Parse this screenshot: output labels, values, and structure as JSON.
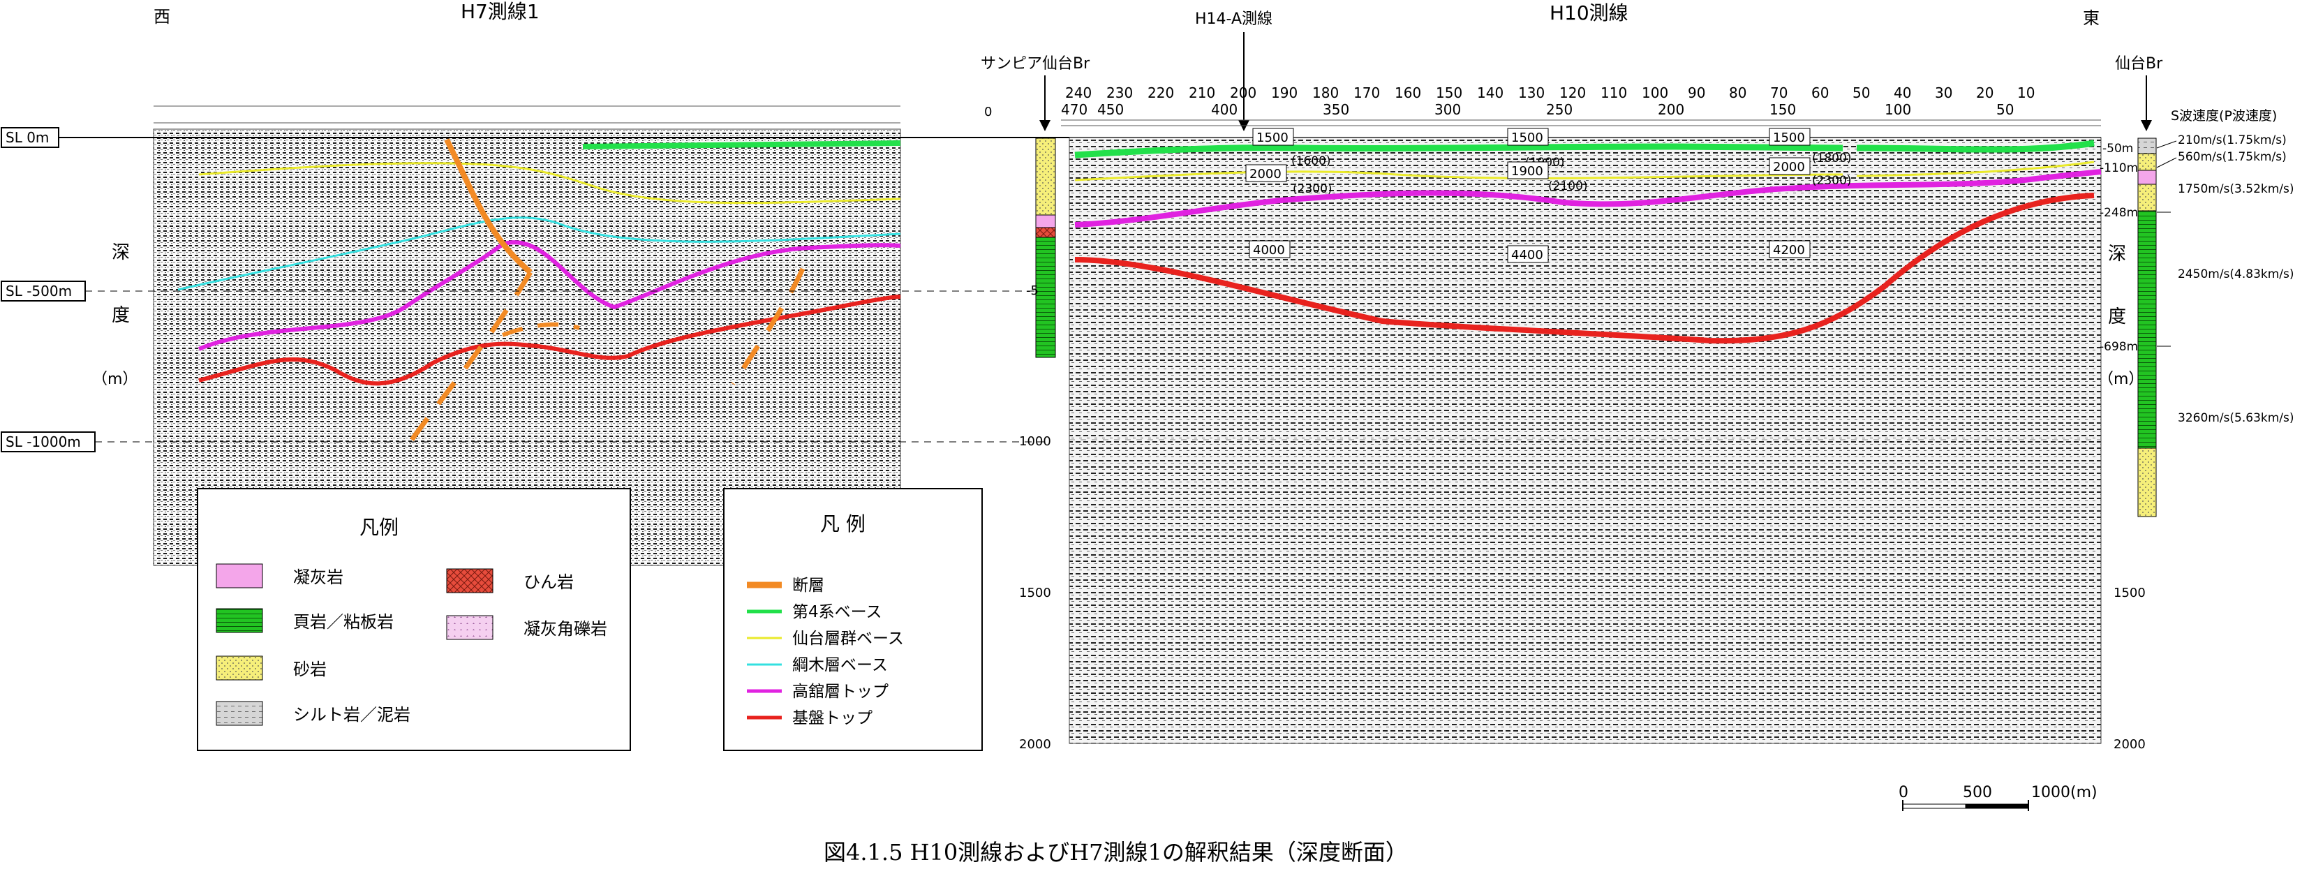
{
  "direction": {
    "west": "西",
    "east": "東"
  },
  "lines": {
    "h7_title": "H7測線1",
    "h10_title": "H10測線",
    "h14_label": "H14-A測線"
  },
  "boreholes": {
    "sunpia": "サンピア仙台Br",
    "sendai": "仙台Br"
  },
  "sea_level": {
    "zero": "SL 0m",
    "minus500": "SL -500m",
    "minus1000": "SL -1000m"
  },
  "depth_label": {
    "c1": "深",
    "c2": "度",
    "c3": "（m）"
  },
  "h10_cdp_top": [
    "240",
    "230",
    "220",
    "210",
    "200",
    "190",
    "180",
    "170",
    "160",
    "150",
    "140",
    "130",
    "120",
    "110",
    "100",
    "90",
    "80",
    "70",
    "60",
    "50",
    "40",
    "30",
    "20",
    "10"
  ],
  "h10_cdp_bottom": [
    "470",
    "450",
    "400",
    "350",
    "300",
    "250",
    "200",
    "150",
    "100",
    "50"
  ],
  "h10_depth_ticks": [
    "0",
    "-5",
    "1000",
    "1500",
    "2000"
  ],
  "velocities": {
    "v1500": "1500",
    "v1600": "(1600)",
    "v1800": "(1800)",
    "v1900": "1900",
    "v1900b": "(1900)",
    "v2000": "2000",
    "v2100": "(2100)",
    "v2300": "(2300)",
    "v4000": "4000",
    "v4200": "4200",
    "v4400": "4400"
  },
  "velocity_header": "S波速度(P波速度)",
  "velocity_layers": [
    {
      "depth": "-50m",
      "value": "210m/s(1.75km/s)"
    },
    {
      "depth": "-110m",
      "value": "560m/s(1.75km/s)"
    },
    {
      "depth": "",
      "value": "1750m/s(3.52km/s)"
    },
    {
      "depth": "-248m",
      "value": "2450m/s(4.83km/s)"
    },
    {
      "depth": "-698m",
      "value": "3260m/s(5.63km/s)"
    }
  ],
  "legend_rock": {
    "title": "凡例",
    "items": [
      {
        "label": "凝灰岩",
        "color": "#f4a6ea"
      },
      {
        "label": "頁岩／粘板岩",
        "color": "#22c422"
      },
      {
        "label": "砂岩",
        "color": "#f6ef7a"
      },
      {
        "label": "シルト岩／泥岩",
        "color": "#cccccc"
      },
      {
        "label": "ひん岩",
        "color": "#e74c3c"
      },
      {
        "label": "凝灰角礫岩",
        "color": "#f5d0f0"
      }
    ]
  },
  "legend_lines": {
    "title": "凡 例",
    "items": [
      {
        "label": "断層",
        "color": "#f28a24"
      },
      {
        "label": "第4系ベース",
        "color": "#22e04a"
      },
      {
        "label": "仙台層群ベース",
        "color": "#eaea2a"
      },
      {
        "label": "綱木層ベース",
        "color": "#34e0e0"
      },
      {
        "label": "高舘層トップ",
        "color": "#e022e0"
      },
      {
        "label": "基盤トップ",
        "color": "#e8221e"
      }
    ]
  },
  "scale_bar": {
    "zero": "0",
    "mid": "500",
    "end": "1000(m)"
  },
  "caption": "図4.1.5 H10測線およびH7測線1の解釈結果（深度断面）"
}
